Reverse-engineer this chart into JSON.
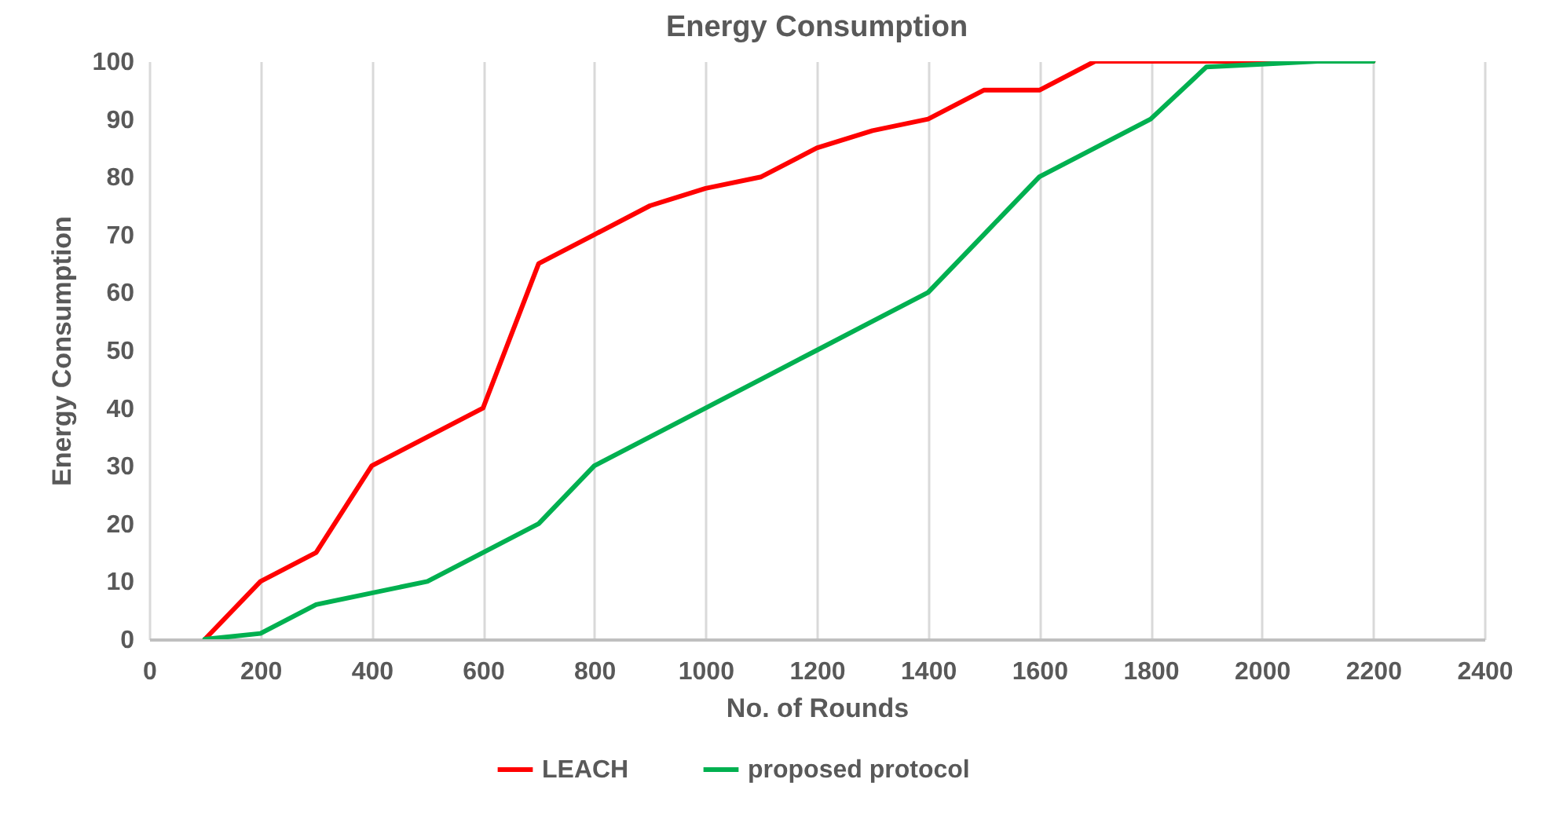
{
  "chart_data": {
    "type": "line",
    "title": "Energy Consumption",
    "xlabel": "No. of Rounds",
    "ylabel": "Energy Consumption",
    "x": [
      100,
      200,
      300,
      400,
      500,
      600,
      700,
      800,
      900,
      1000,
      1100,
      1200,
      1300,
      1400,
      1500,
      1600,
      1700,
      1800,
      1900,
      2000,
      2100,
      2200
    ],
    "series": [
      {
        "name": "LEACH",
        "color": "#ff0000",
        "values": [
          0,
          10,
          15,
          30,
          35,
          40,
          65,
          70,
          75,
          78,
          80,
          85,
          88,
          90,
          95,
          95,
          100,
          100,
          100,
          100,
          100,
          100
        ]
      },
      {
        "name": "proposed protocol",
        "color": "#00b050",
        "values": [
          0,
          1,
          6,
          8,
          10,
          15,
          20,
          30,
          35,
          40,
          45,
          50,
          55,
          60,
          70,
          80,
          85,
          90,
          99,
          99.5,
          100,
          100
        ]
      }
    ],
    "xlim": [
      0,
      2400
    ],
    "xticks": [
      0,
      200,
      400,
      600,
      800,
      1000,
      1200,
      1400,
      1600,
      1800,
      2000,
      2200,
      2400
    ],
    "ylim": [
      0,
      100
    ],
    "yticks": [
      0,
      10,
      20,
      30,
      40,
      50,
      60,
      70,
      80,
      90,
      100
    ],
    "grid": "x",
    "legend": "bottom",
    "marker": "none",
    "line_style": "solid"
  }
}
